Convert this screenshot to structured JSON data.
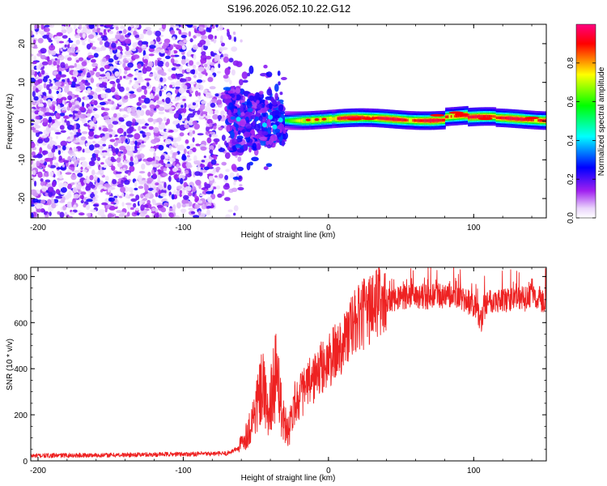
{
  "title": "S196.2026.052.10.22.G12",
  "colors": {
    "snr_line": "#ee2222",
    "axis": "#000000",
    "background": "#ffffff",
    "colormap": [
      "#ffffff",
      "#a020f0",
      "#0000ff",
      "#00ffff",
      "#00ff00",
      "#ffff00",
      "#ff0000"
    ]
  },
  "chart_data": [
    {
      "type": "heatmap",
      "name": "spectrogram",
      "title": "S196.2026.052.10.22.G12",
      "xlabel": "Height of straight line (km)",
      "ylabel": "Frequency (Hz)",
      "xlim": [
        -205,
        150
      ],
      "ylim": [
        -25,
        25
      ],
      "xticks": [
        -200,
        -100,
        0,
        100
      ],
      "yticks": [
        20,
        10,
        0,
        -10,
        -20
      ],
      "colorbar": {
        "label": "Normalized spectral amplitude",
        "range": [
          0,
          1
        ],
        "ticks": [
          "0.0",
          "0.2",
          "0.4",
          "0.6",
          "0.8"
        ]
      },
      "regions": [
        {
          "description": "scattered noise",
          "x_range": [
            -205,
            -70
          ],
          "freq_range": [
            -25,
            25
          ],
          "amplitude": 0.1
        },
        {
          "description": "transition",
          "x_range": [
            -70,
            -30
          ],
          "freq_range": [
            -10,
            10
          ],
          "amplitude": 0.2
        },
        {
          "description": "signal band",
          "x_range": [
            -30,
            150
          ],
          "center_freq": 0.5,
          "amplitude": 0.9
        }
      ]
    },
    {
      "type": "line",
      "name": "snr",
      "xlabel": "Height of straight line (km)",
      "ylabel": "SNR (10 * v/v)",
      "xlim": [
        -205,
        150
      ],
      "ylim": [
        0,
        840
      ],
      "xticks": [
        -200,
        -100,
        0,
        100
      ],
      "yticks": [
        0,
        200,
        400,
        600,
        800
      ],
      "series": [
        {
          "name": "SNR",
          "color": "#ee2222",
          "x": [
            -205,
            -180,
            -150,
            -120,
            -90,
            -70,
            -62,
            -55,
            -50,
            -45,
            -42,
            -40,
            -38,
            -35,
            -33,
            -30,
            -27,
            -24,
            -20,
            -15,
            -10,
            -5,
            0,
            5,
            10,
            15,
            20,
            25,
            30,
            35,
            40,
            45,
            50,
            60,
            70,
            80,
            90,
            95,
            100,
            103,
            105,
            108,
            110,
            120,
            130,
            140,
            150
          ],
          "y": [
            22,
            24,
            25,
            28,
            30,
            32,
            55,
            130,
            230,
            320,
            200,
            260,
            330,
            410,
            250,
            160,
            140,
            250,
            280,
            320,
            360,
            400,
            430,
            470,
            520,
            570,
            610,
            640,
            670,
            690,
            700,
            705,
            710,
            715,
            712,
            718,
            710,
            690,
            680,
            640,
            600,
            680,
            700,
            695,
            700,
            705,
            700
          ]
        }
      ]
    }
  ]
}
